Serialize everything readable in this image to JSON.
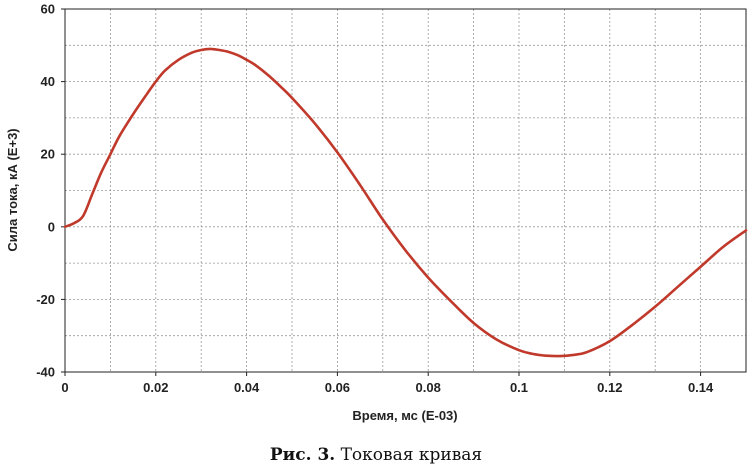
{
  "caption": {
    "prefix": "Рис. 3.",
    "text": "Токовая кривая"
  },
  "chart_data": {
    "type": "line",
    "title": "",
    "xlabel": "Время, мс (E-03)",
    "ylabel": "Сила тока, кА (E+3)",
    "xlim": [
      0,
      0.15
    ],
    "ylim": [
      -40,
      60
    ],
    "grid": true,
    "x_ticks": [
      0,
      0.02,
      0.04,
      0.06,
      0.08,
      0.1,
      0.12,
      0.14
    ],
    "x_tick_labels": [
      "0",
      "0.02",
      "0.04",
      "0.06",
      "0.08",
      "0.1",
      "0.12",
      "0.14"
    ],
    "y_ticks": [
      -40,
      -20,
      0,
      20,
      40,
      60
    ],
    "y_tick_labels": [
      "-40",
      "-20",
      "0",
      "20",
      "40",
      "60"
    ],
    "series": [
      {
        "color": "#c0392b",
        "x": [
          0,
          0.002,
          0.004,
          0.006,
          0.008,
          0.01,
          0.012,
          0.015,
          0.018,
          0.02,
          0.022,
          0.025,
          0.028,
          0.03,
          0.032,
          0.034,
          0.036,
          0.038,
          0.04,
          0.042,
          0.045,
          0.048,
          0.05,
          0.055,
          0.06,
          0.065,
          0.07,
          0.075,
          0.08,
          0.085,
          0.09,
          0.095,
          0.1,
          0.103,
          0.106,
          0.109,
          0.112,
          0.115,
          0.12,
          0.125,
          0.13,
          0.135,
          0.14,
          0.145,
          0.15
        ],
        "y": [
          0,
          1,
          3,
          9,
          15,
          20,
          25,
          31,
          36.5,
          40,
          43,
          46,
          48,
          48.7,
          49,
          48.7,
          48.2,
          47.3,
          46,
          44.5,
          41.5,
          38,
          35.5,
          28.5,
          20.5,
          11.5,
          2,
          -6.5,
          -14,
          -20.5,
          -26.5,
          -31,
          -34,
          -35,
          -35.5,
          -35.6,
          -35.3,
          -34.5,
          -31.5,
          -27,
          -22,
          -16.5,
          -11,
          -5.5,
          -1
        ]
      }
    ]
  }
}
